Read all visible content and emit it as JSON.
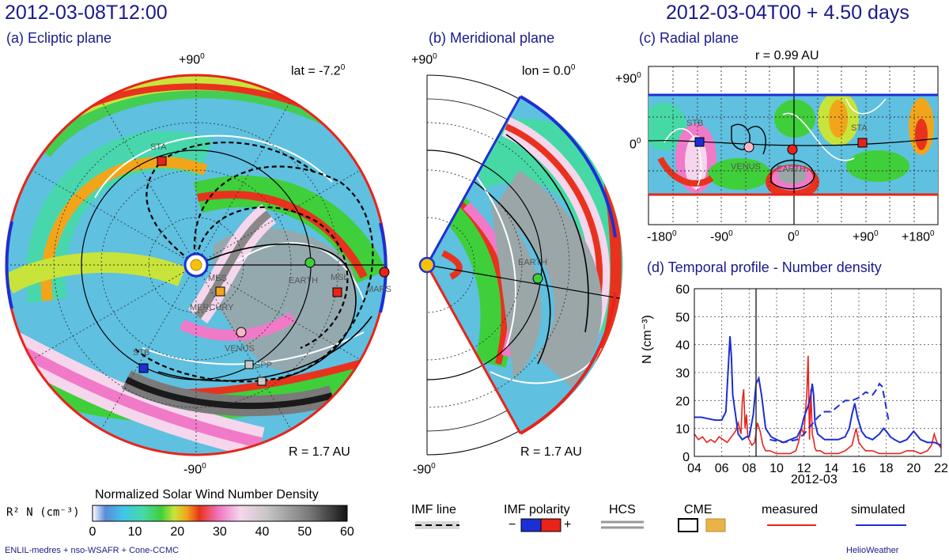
{
  "header": {
    "left_title": "2012-03-08T12:00",
    "right_title": "2012-03-04T00 + 4.50 days"
  },
  "panels": {
    "a": {
      "title": "(a) Ecliptic plane",
      "top_label": "+90",
      "bottom_label": "-90",
      "deg": "0",
      "lat_label": "lat = -7.2",
      "r_label": "R = 1.7 AU",
      "objects": [
        "STA",
        "MES",
        "MERCURY",
        "EARTH",
        "MSL",
        "MARS",
        "VENUS",
        "STB",
        "SPP"
      ]
    },
    "b": {
      "title": "(b) Meridional plane",
      "top_label": "+90",
      "bottom_label": "-90",
      "deg": "0",
      "lon_label": "lon = 0.0",
      "r_label": "R = 1.7 AU",
      "objects": [
        "EARTH"
      ]
    },
    "c": {
      "title": "(c) Radial plane",
      "r_label": "r = 0.99 AU",
      "y_ticks": [
        "+90",
        "0"
      ],
      "x_ticks": [
        "-180",
        "-90",
        "0",
        "+90",
        "+180"
      ],
      "deg": "0",
      "objects": [
        "STB",
        "VENUS",
        "EARTH",
        "STA"
      ]
    }
  },
  "colorbar": {
    "title": "Normalized Solar Wind Number Density",
    "unit_label": "R² N (cm⁻³)",
    "ticks": [
      "0",
      "10",
      "20",
      "30",
      "40",
      "50",
      "60"
    ],
    "colors": [
      "#ffffff",
      "#5a8bd8",
      "#3fc6e8",
      "#46d9a6",
      "#3fcf3a",
      "#c8e43a",
      "#f2a51a",
      "#e8321e",
      "#f07ac8",
      "#f5d6ec",
      "#c8c8c8",
      "#7a7a7a",
      "#141414"
    ]
  },
  "legend": {
    "imf_line": "IMF line",
    "imf_polarity": "IMF polarity",
    "minus": "−",
    "plus": "+",
    "hcs": "HCS",
    "cme": "CME",
    "measured": "measured",
    "simulated": "simulated",
    "measured_color": "#e8231a",
    "simulated_color": "#1c2fd4"
  },
  "footer": {
    "left": "ENLIL-medres + nso-WSAFR + Cone-CCMC",
    "right": "HelioWeather"
  },
  "chart_data": {
    "type": "line",
    "title": "(d) Temporal profile - Number density",
    "xlabel": "2012-03",
    "ylabel": "N (cm⁻³)",
    "x_ticks": [
      "04",
      "06",
      "08",
      "10",
      "12",
      "14",
      "16",
      "18",
      "20",
      "22"
    ],
    "y_ticks": [
      "0",
      "10",
      "20",
      "30",
      "40",
      "50",
      "60"
    ],
    "xlim": [
      4,
      22
    ],
    "ylim": [
      0,
      60
    ],
    "current_time": 8.5,
    "series": [
      {
        "name": "measured",
        "color": "#e8231a",
        "x": [
          4.0,
          4.3,
          4.6,
          4.9,
          5.2,
          5.5,
          5.8,
          6.1,
          6.4,
          6.7,
          7.0,
          7.2,
          7.4,
          7.5,
          7.6,
          7.7,
          7.8,
          7.9,
          8.0,
          8.2,
          8.4,
          8.6,
          8.8,
          9.0,
          9.2,
          9.5,
          10,
          10.5,
          11,
          11.4,
          11.6,
          11.8,
          12.0,
          12.1,
          12.2,
          12.3,
          12.4,
          12.5,
          12.6,
          12.7,
          12.8,
          12.9,
          13.2,
          13.5,
          14,
          14.5,
          15,
          15.5,
          15.7,
          15.8,
          16.0,
          16.3,
          16.5,
          17,
          17.5,
          18,
          18.5,
          19,
          19.5,
          20,
          20.5,
          21,
          21.3,
          21.5,
          21.7,
          22
        ],
        "y": [
          8,
          6,
          7,
          5,
          6,
          5,
          7,
          6,
          5,
          7,
          9,
          12,
          8,
          20,
          24,
          10,
          15,
          7,
          6,
          4,
          5,
          12,
          9,
          4,
          2,
          2,
          1,
          1,
          1,
          2,
          5,
          10,
          8,
          16,
          22,
          36,
          6,
          24,
          8,
          6,
          3,
          2,
          2,
          1,
          1,
          1,
          2,
          4,
          8,
          10,
          5,
          3,
          2,
          2,
          1,
          1,
          1,
          1,
          2,
          2,
          1,
          2,
          4,
          8,
          5,
          3
        ]
      },
      {
        "name": "simulated",
        "color": "#1c2fd4",
        "x": [
          4.0,
          4.5,
          5.0,
          5.5,
          6.0,
          6.3,
          6.5,
          6.6,
          6.7,
          6.8,
          7.0,
          7.2,
          7.5,
          7.8,
          8.0,
          8.3,
          8.5,
          8.7,
          8.9,
          9.2,
          9.6,
          10,
          10.5,
          11,
          11.5,
          11.8,
          12.0,
          12.3,
          12.5,
          12.6,
          12.7,
          12.8,
          13.0,
          13.5,
          14,
          14.5,
          15,
          15.3,
          15.5,
          15.7,
          15.9,
          16.2,
          16.5,
          17,
          17.5,
          17.8,
          18.0,
          18.3,
          18.6,
          19,
          19.5,
          20,
          20.5,
          21,
          21.5,
          22
        ],
        "y": [
          14,
          14,
          13.5,
          13,
          13,
          16,
          34,
          43,
          36,
          22,
          15,
          8,
          6,
          7,
          7,
          15,
          26,
          28,
          22,
          10,
          7,
          6,
          5,
          6,
          7,
          10,
          14,
          18,
          22,
          26,
          22,
          12,
          8,
          6,
          6,
          6,
          7,
          10,
          15,
          19,
          14,
          9,
          7,
          6,
          8,
          10,
          9,
          7,
          6,
          5,
          6,
          9,
          6,
          5,
          5,
          4
        ]
      },
      {
        "name": "simulated (dashed)",
        "color": "#1c2fd4",
        "x": [
          9.5,
          10,
          10.5,
          11,
          11.5,
          12,
          12.5,
          13,
          13.5,
          14,
          14.5,
          15,
          15.5,
          16,
          16.5,
          17,
          17.3,
          17.5,
          17.7,
          17.9,
          18.2
        ],
        "y": [
          6,
          5.5,
          5,
          5.5,
          6,
          8,
          11,
          14,
          16,
          16,
          18,
          20,
          20,
          21,
          23,
          22,
          24,
          26,
          25,
          20,
          12
        ]
      }
    ]
  }
}
